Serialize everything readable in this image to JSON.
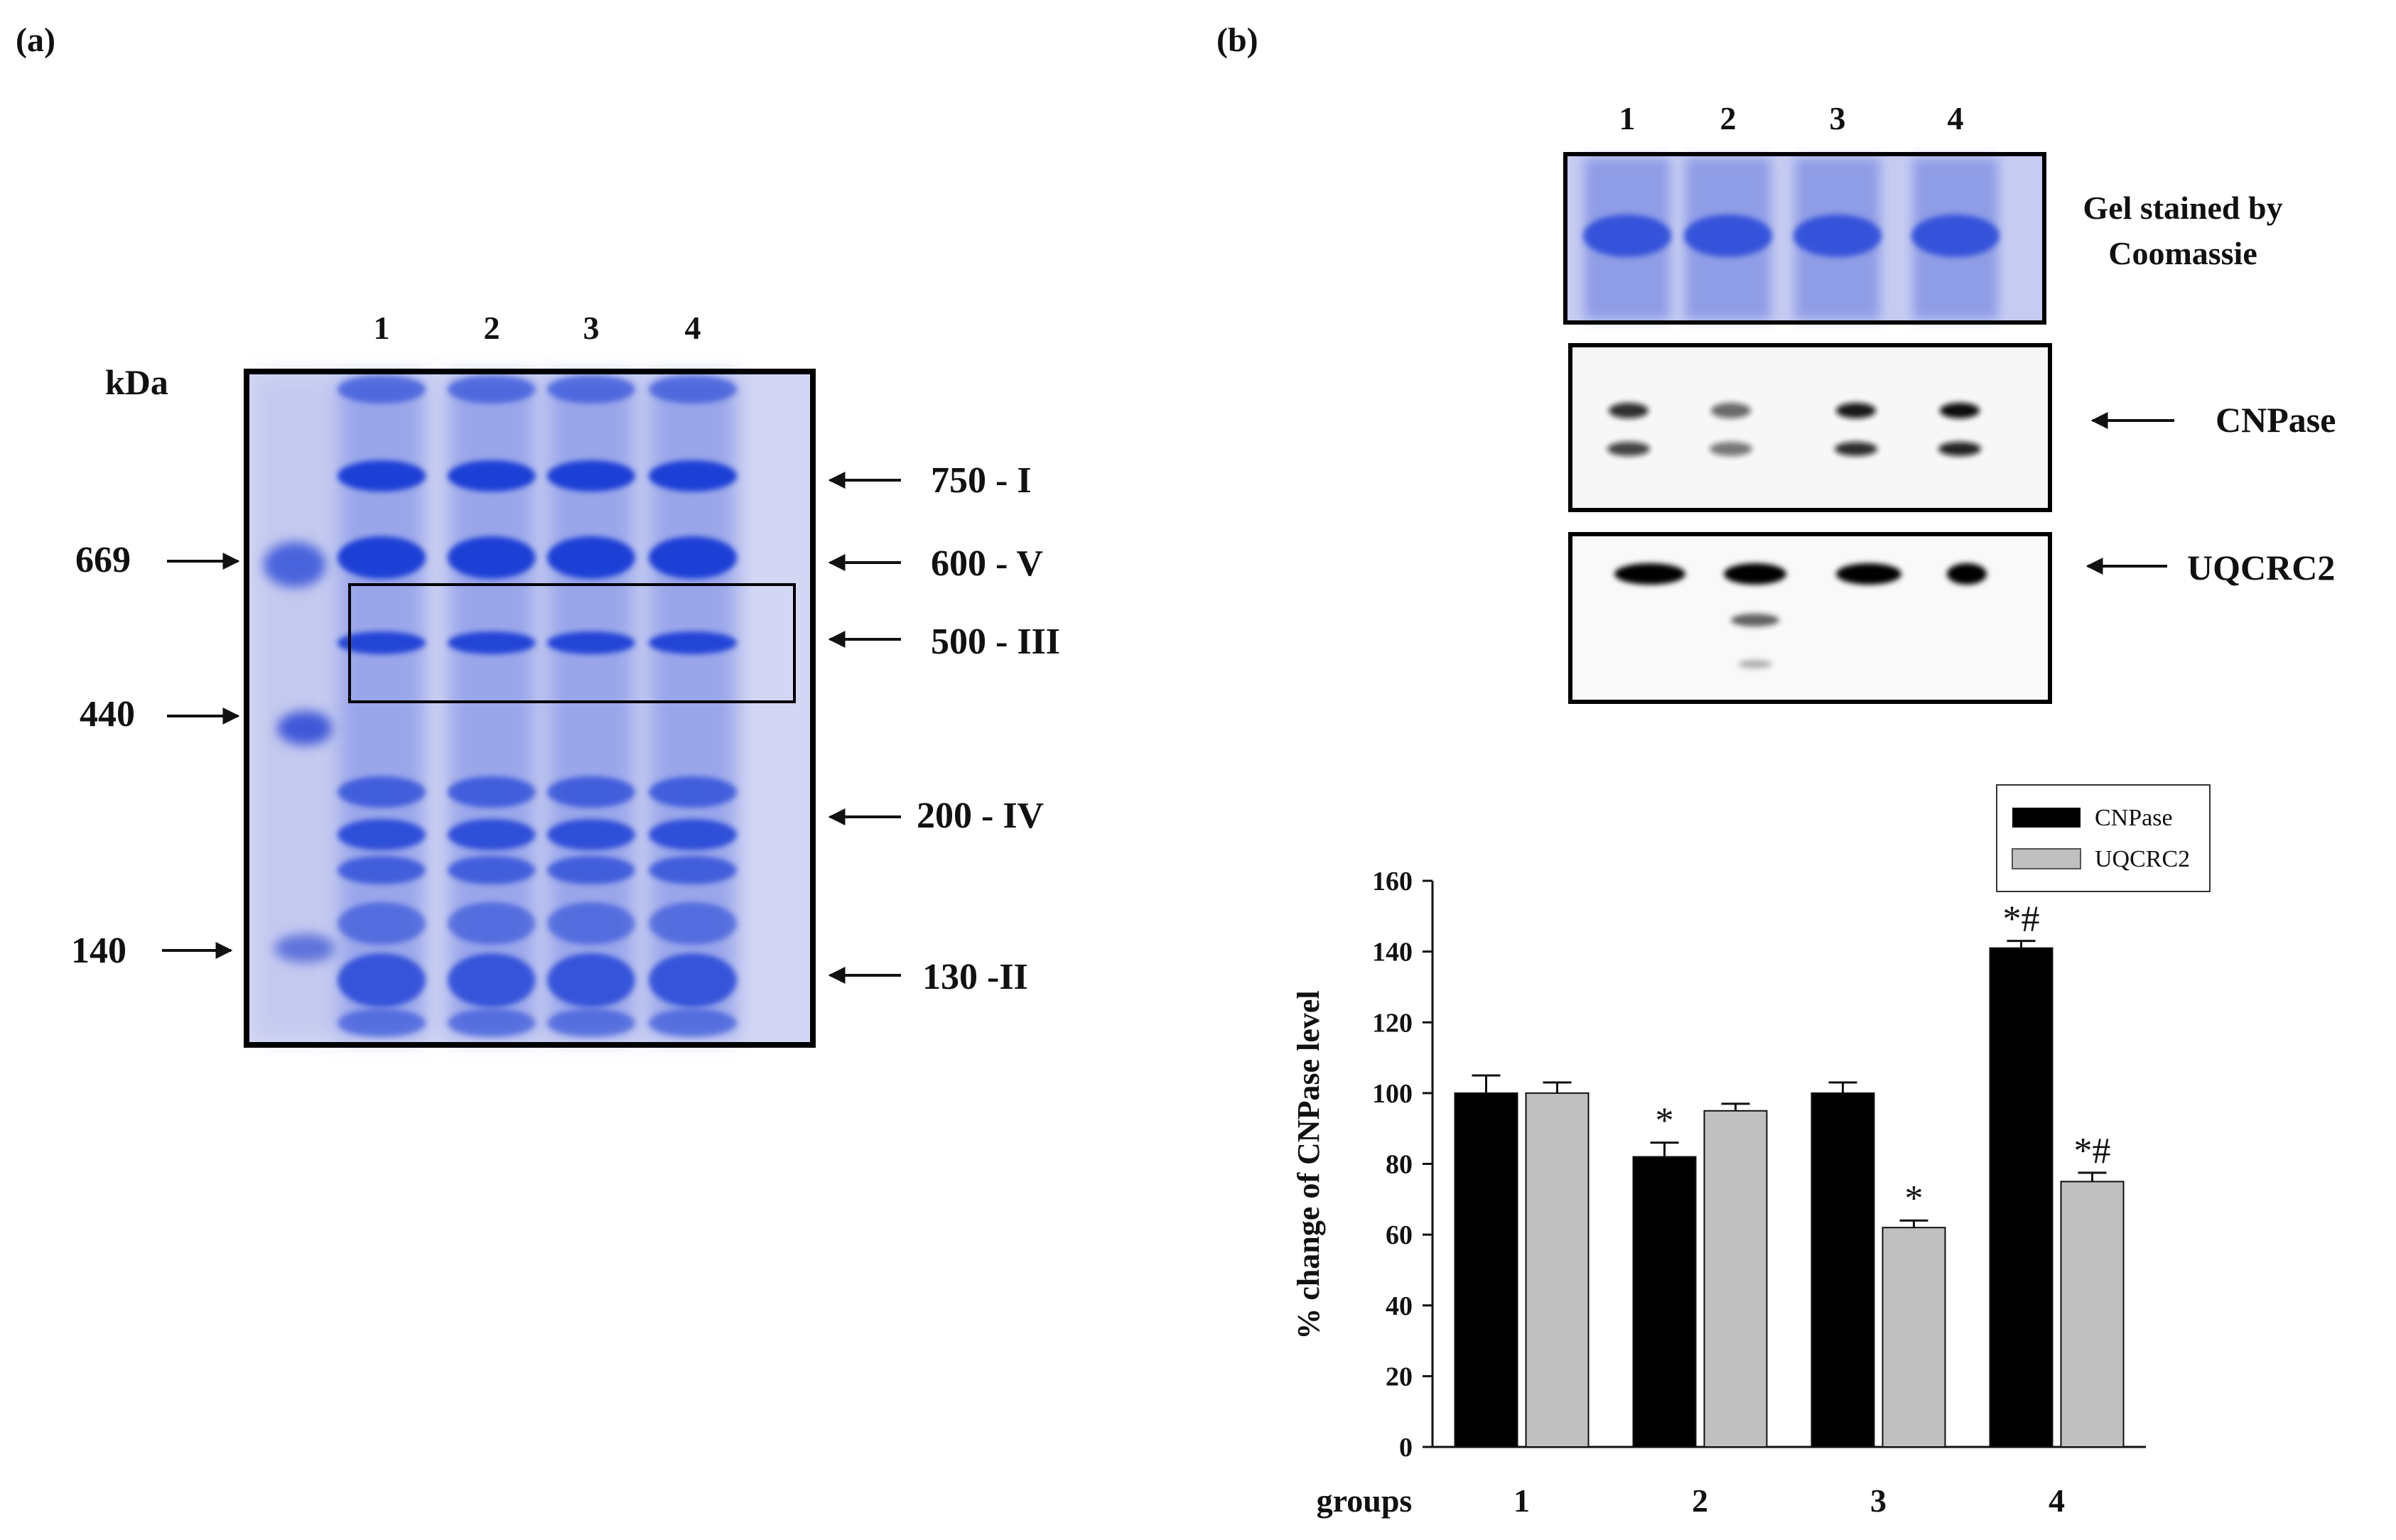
{
  "panel_a": {
    "label": "(a)",
    "unit_label": "kDa",
    "lane_labels": [
      "1",
      "2",
      "3",
      "4"
    ],
    "markers": [
      "669",
      "440",
      "140"
    ],
    "complexes": [
      "750 - I",
      "600 - V",
      "500 - III",
      "200 - IV",
      "130 -II"
    ]
  },
  "panel_b": {
    "label": "(b)",
    "lane_labels": [
      "1",
      "2",
      "3",
      "4"
    ],
    "coomassie_label_line1": "Gel stained by",
    "coomassie_label_line2": "Coomassie",
    "blot1_label": "CNPase",
    "blot2_label": "UQCRC2"
  },
  "colors": {
    "gel_bg": "#c8cdf0",
    "band": "#1f3fd6",
    "bar_cnpase": "#000000",
    "bar_uqcrc2": "#c0c0c0"
  },
  "chart_data": {
    "type": "bar",
    "title": "",
    "xlabel": "groups",
    "ylabel": "% change of CNPase level",
    "categories": [
      "1",
      "2",
      "3",
      "4"
    ],
    "ylim": [
      0,
      160
    ],
    "yticks": [
      0,
      20,
      40,
      60,
      80,
      100,
      120,
      140,
      160
    ],
    "ytick_labels": [
      "0",
      "20",
      "40",
      "60",
      "80",
      "100",
      "120",
      "140",
      "160"
    ],
    "grid": false,
    "legend_position": "top-right",
    "series": [
      {
        "name": "CNPase",
        "values": [
          100,
          82,
          100,
          141
        ],
        "errors": [
          5,
          4,
          3,
          2
        ],
        "annotations": [
          "",
          "*",
          "",
          "*#"
        ]
      },
      {
        "name": "UQCRC2",
        "values": [
          100,
          95,
          62,
          75
        ],
        "errors": [
          3,
          2,
          2,
          2.5
        ],
        "annotations": [
          "",
          "",
          "*",
          "*#"
        ]
      }
    ]
  }
}
